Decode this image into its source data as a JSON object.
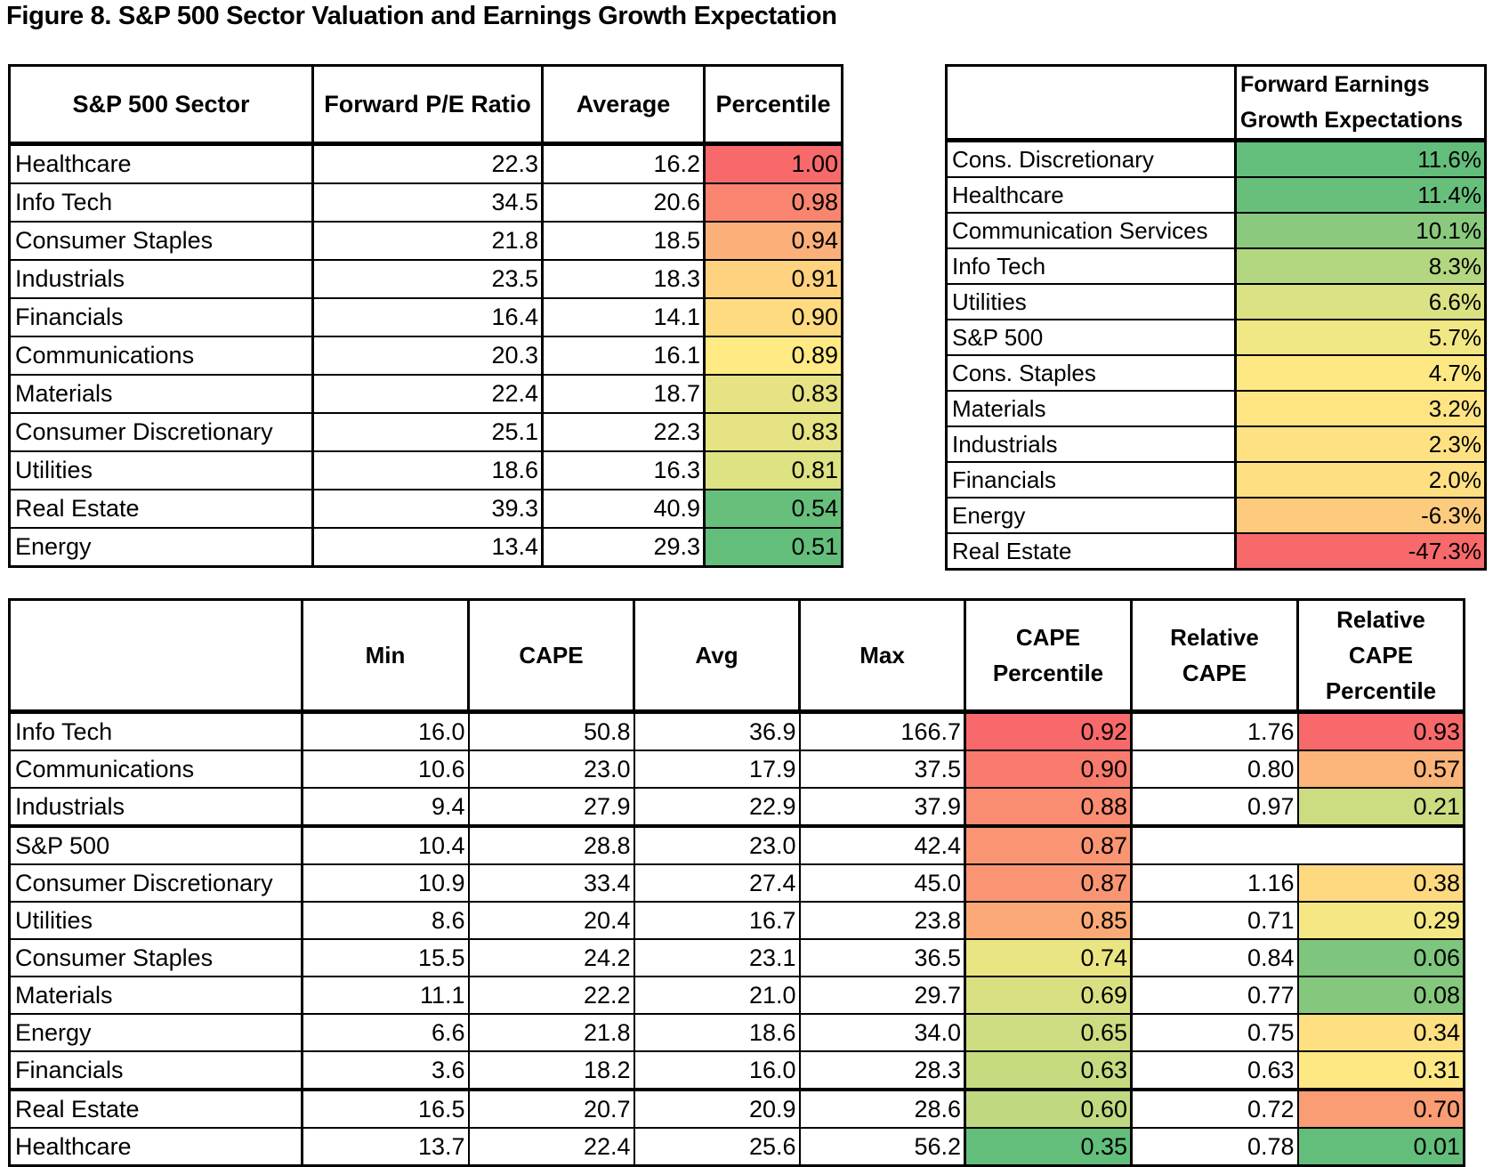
{
  "title": "Figure 8. S&P 500 Sector Valuation and Earnings Growth Expectation",
  "pe_table": {
    "headers": [
      "S&P 500 Sector",
      "Forward P/E Ratio",
      "Average",
      "Percentile"
    ],
    "rows": [
      {
        "sector": "Healthcare",
        "forward_pe": "22.3",
        "average": "16.2",
        "percentile": "1.00",
        "color": "#f8696b"
      },
      {
        "sector": "Info Tech",
        "forward_pe": "34.5",
        "average": "20.6",
        "percentile": "0.98",
        "color": "#f98570"
      },
      {
        "sector": "Consumer Staples",
        "forward_pe": "21.8",
        "average": "18.5",
        "percentile": "0.94",
        "color": "#fbb07a"
      },
      {
        "sector": "Industrials",
        "forward_pe": "23.5",
        "average": "18.3",
        "percentile": "0.91",
        "color": "#fed27f"
      },
      {
        "sector": "Financials",
        "forward_pe": "16.4",
        "average": "14.1",
        "percentile": "0.90",
        "color": "#fedb81"
      },
      {
        "sector": "Communications",
        "forward_pe": "20.3",
        "average": "16.1",
        "percentile": "0.89",
        "color": "#ffea84"
      },
      {
        "sector": "Materials",
        "forward_pe": "22.4",
        "average": "18.7",
        "percentile": "0.83",
        "color": "#e5e383"
      },
      {
        "sector": "Consumer Discretionary",
        "forward_pe": "25.1",
        "average": "22.3",
        "percentile": "0.83",
        "color": "#e5e383"
      },
      {
        "sector": "Utilities",
        "forward_pe": "18.6",
        "average": "16.3",
        "percentile": "0.81",
        "color": "#dde282"
      },
      {
        "sector": "Real Estate",
        "forward_pe": "39.3",
        "average": "40.9",
        "percentile": "0.54",
        "color": "#67bf7c"
      },
      {
        "sector": "Energy",
        "forward_pe": "13.4",
        "average": "29.3",
        "percentile": "0.51",
        "color": "#63be7b"
      }
    ]
  },
  "growth_table": {
    "headers": [
      "",
      "Forward Earnings Growth Expectations"
    ],
    "rows": [
      {
        "sector": "Cons. Discretionary",
        "growth": "11.6%",
        "color": "#63be7b"
      },
      {
        "sector": "Healthcare",
        "growth": "11.4%",
        "color": "#68bf7c"
      },
      {
        "sector": "Communication Services",
        "growth": "10.1%",
        "color": "#8ac97e"
      },
      {
        "sector": "Info Tech",
        "growth": "8.3%",
        "color": "#b3d680"
      },
      {
        "sector": "Utilities",
        "growth": "6.6%",
        "color": "#dbe283"
      },
      {
        "sector": "S&P 500",
        "growth": "5.7%",
        "color": "#f1e784"
      },
      {
        "sector": "Cons. Staples",
        "growth": "4.7%",
        "color": "#fee884"
      },
      {
        "sector": "Materials",
        "growth": "3.2%",
        "color": "#fee483"
      },
      {
        "sector": "Industrials",
        "growth": "2.3%",
        "color": "#fee182"
      },
      {
        "sector": "Financials",
        "growth": "2.0%",
        "color": "#fee082"
      },
      {
        "sector": "Energy",
        "growth": "-6.3%",
        "color": "#fccb7d"
      },
      {
        "sector": "Real Estate",
        "growth": "-47.3%",
        "color": "#f8696b"
      }
    ]
  },
  "cape_table": {
    "headers": [
      "",
      "Min",
      "CAPE",
      "Avg",
      "Max",
      "CAPE Percentile",
      "Relative CAPE",
      "Relative CAPE Percentile"
    ],
    "rows": [
      {
        "sector": "Info Tech",
        "min": "16.0",
        "cape": "50.8",
        "avg": "36.9",
        "max": "166.7",
        "cape_pct": "0.92",
        "cape_pct_color": "#f8696b",
        "rel_cape": "1.76",
        "rel_pct": "0.93",
        "rel_pct_color": "#f8696b"
      },
      {
        "sector": "Communications",
        "min": "10.6",
        "cape": "23.0",
        "avg": "17.9",
        "max": "37.5",
        "cape_pct": "0.90",
        "cape_pct_color": "#f97b6e",
        "rel_cape": "0.80",
        "rel_pct": "0.57",
        "rel_pct_color": "#fbb479"
      },
      {
        "sector": "Industrials",
        "min": "9.4",
        "cape": "27.9",
        "avg": "22.9",
        "max": "37.9",
        "cape_pct": "0.88",
        "cape_pct_color": "#fa8c72",
        "rel_cape": "0.97",
        "rel_pct": "0.21",
        "rel_pct_color": "#cbdc81"
      },
      {
        "sector": "S&P 500",
        "min": "10.4",
        "cape": "28.8",
        "avg": "23.0",
        "max": "42.4",
        "cape_pct": "0.87",
        "cape_pct_color": "#fa9573",
        "rel_cape": "",
        "rel_pct": "",
        "rel_pct_color": "#ffffff"
      },
      {
        "sector": "Consumer Discretionary",
        "min": "10.9",
        "cape": "33.4",
        "avg": "27.4",
        "max": "45.0",
        "cape_pct": "0.87",
        "cape_pct_color": "#fa9573",
        "rel_cape": "1.16",
        "rel_pct": "0.38",
        "rel_pct_color": "#fed980"
      },
      {
        "sector": "Utilities",
        "min": "8.6",
        "cape": "20.4",
        "avg": "16.7",
        "max": "23.8",
        "cape_pct": "0.85",
        "cape_pct_color": "#fbaa77",
        "rel_cape": "0.71",
        "rel_pct": "0.29",
        "rel_pct_color": "#f5e884"
      },
      {
        "sector": "Consumer Staples",
        "min": "15.5",
        "cape": "24.2",
        "avg": "23.1",
        "max": "36.5",
        "cape_pct": "0.74",
        "cape_pct_color": "#e9e582",
        "rel_cape": "0.84",
        "rel_pct": "0.06",
        "rel_pct_color": "#7ec57d"
      },
      {
        "sector": "Materials",
        "min": "11.1",
        "cape": "22.2",
        "avg": "21.0",
        "max": "29.7",
        "cape_pct": "0.69",
        "cape_pct_color": "#d9e082",
        "rel_cape": "0.77",
        "rel_pct": "0.08",
        "rel_pct_color": "#86c77e"
      },
      {
        "sector": "Energy",
        "min": "6.6",
        "cape": "21.8",
        "avg": "18.6",
        "max": "34.0",
        "cape_pct": "0.65",
        "cape_pct_color": "#cddc81",
        "rel_cape": "0.75",
        "rel_pct": "0.34",
        "rel_pct_color": "#fee082"
      },
      {
        "sector": "Financials",
        "min": "3.6",
        "cape": "18.2",
        "avg": "16.0",
        "max": "28.3",
        "cape_pct": "0.63",
        "cape_pct_color": "#c6da80",
        "rel_cape": "0.63",
        "rel_pct": "0.31",
        "rel_pct_color": "#fee884"
      },
      {
        "sector": "Real Estate",
        "min": "16.5",
        "cape": "20.7",
        "avg": "20.9",
        "max": "28.6",
        "cape_pct": "0.60",
        "cape_pct_color": "#c0d880",
        "rel_cape": "0.72",
        "rel_pct": "0.70",
        "rel_pct_color": "#fa9c74"
      },
      {
        "sector": "Healthcare",
        "min": "13.7",
        "cape": "22.4",
        "avg": "25.6",
        "max": "56.2",
        "cape_pct": "0.35",
        "cape_pct_color": "#63be7b",
        "rel_cape": "0.78",
        "rel_pct": "0.01",
        "rel_pct_color": "#63be7b"
      }
    ]
  }
}
